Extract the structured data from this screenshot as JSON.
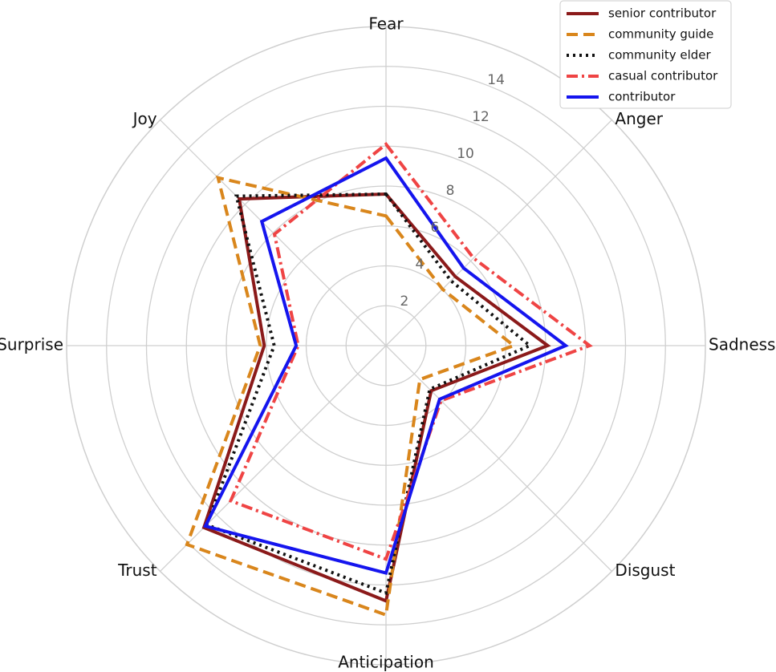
{
  "chart_data": {
    "type": "radar",
    "categories": [
      "Fear",
      "Anger",
      "Sadness",
      "Disgust",
      "Anticipation",
      "Trust",
      "Surprise",
      "Joy"
    ],
    "ylim": [
      0,
      16
    ],
    "yticks": [
      2,
      4,
      6,
      8,
      10,
      12,
      14
    ],
    "grid": true,
    "legend": "upper right",
    "series": [
      {
        "name": "senior contributor",
        "color": "#8b1a1a",
        "linestyle": "solid",
        "values": [
          7.6,
          4.9,
          8.1,
          3.2,
          12.8,
          12.9,
          6.1,
          10.4
        ]
      },
      {
        "name": "community guide",
        "color": "#d9861c",
        "linestyle": "dashed",
        "values": [
          6.5,
          4.0,
          6.4,
          2.4,
          13.5,
          14.1,
          6.3,
          11.9
        ]
      },
      {
        "name": "community elder",
        "color": "#111111",
        "linestyle": "dotted",
        "values": [
          7.6,
          4.6,
          7.2,
          3.1,
          12.4,
          12.7,
          5.6,
          10.6
        ]
      },
      {
        "name": "casual contributor",
        "color": "#ef4444",
        "linestyle": "dashdot",
        "values": [
          10.1,
          6.2,
          10.2,
          3.9,
          10.7,
          11.0,
          4.4,
          7.9
        ]
      },
      {
        "name": "contributor",
        "color": "#1515ee",
        "linestyle": "solid",
        "values": [
          9.4,
          5.5,
          9.0,
          3.8,
          11.4,
          12.8,
          4.5,
          8.8
        ]
      }
    ]
  }
}
